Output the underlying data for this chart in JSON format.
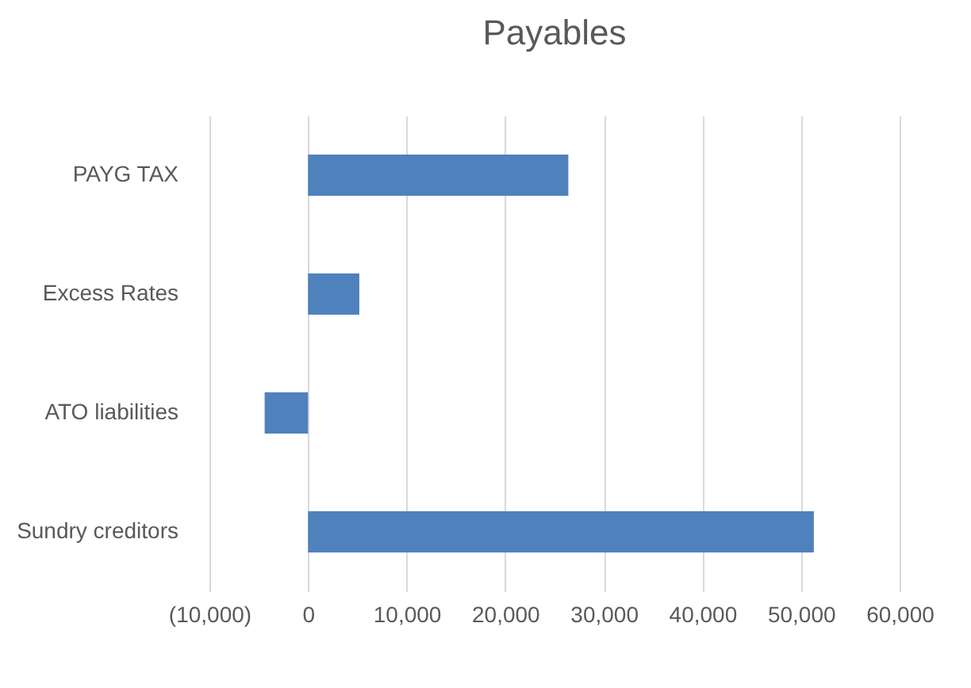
{
  "chart_data": {
    "type": "bar",
    "orientation": "horizontal",
    "title": "Payables",
    "categories": [
      "PAYG TAX",
      "Excess Rates",
      "ATO liabilities",
      "Sundry creditors"
    ],
    "values": [
      26400,
      5200,
      -4400,
      51300
    ],
    "color": "#4f81bd",
    "xlim": [
      -10000,
      60000
    ],
    "xticks": [
      {
        "value": -10000,
        "label": "(10,000)"
      },
      {
        "value": 0,
        "label": "0"
      },
      {
        "value": 10000,
        "label": "10,000"
      },
      {
        "value": 20000,
        "label": "20,000"
      },
      {
        "value": 30000,
        "label": "30,000"
      },
      {
        "value": 40000,
        "label": "40,000"
      },
      {
        "value": 50000,
        "label": "50,000"
      },
      {
        "value": 60000,
        "label": "60,000"
      }
    ],
    "grid": "x"
  }
}
